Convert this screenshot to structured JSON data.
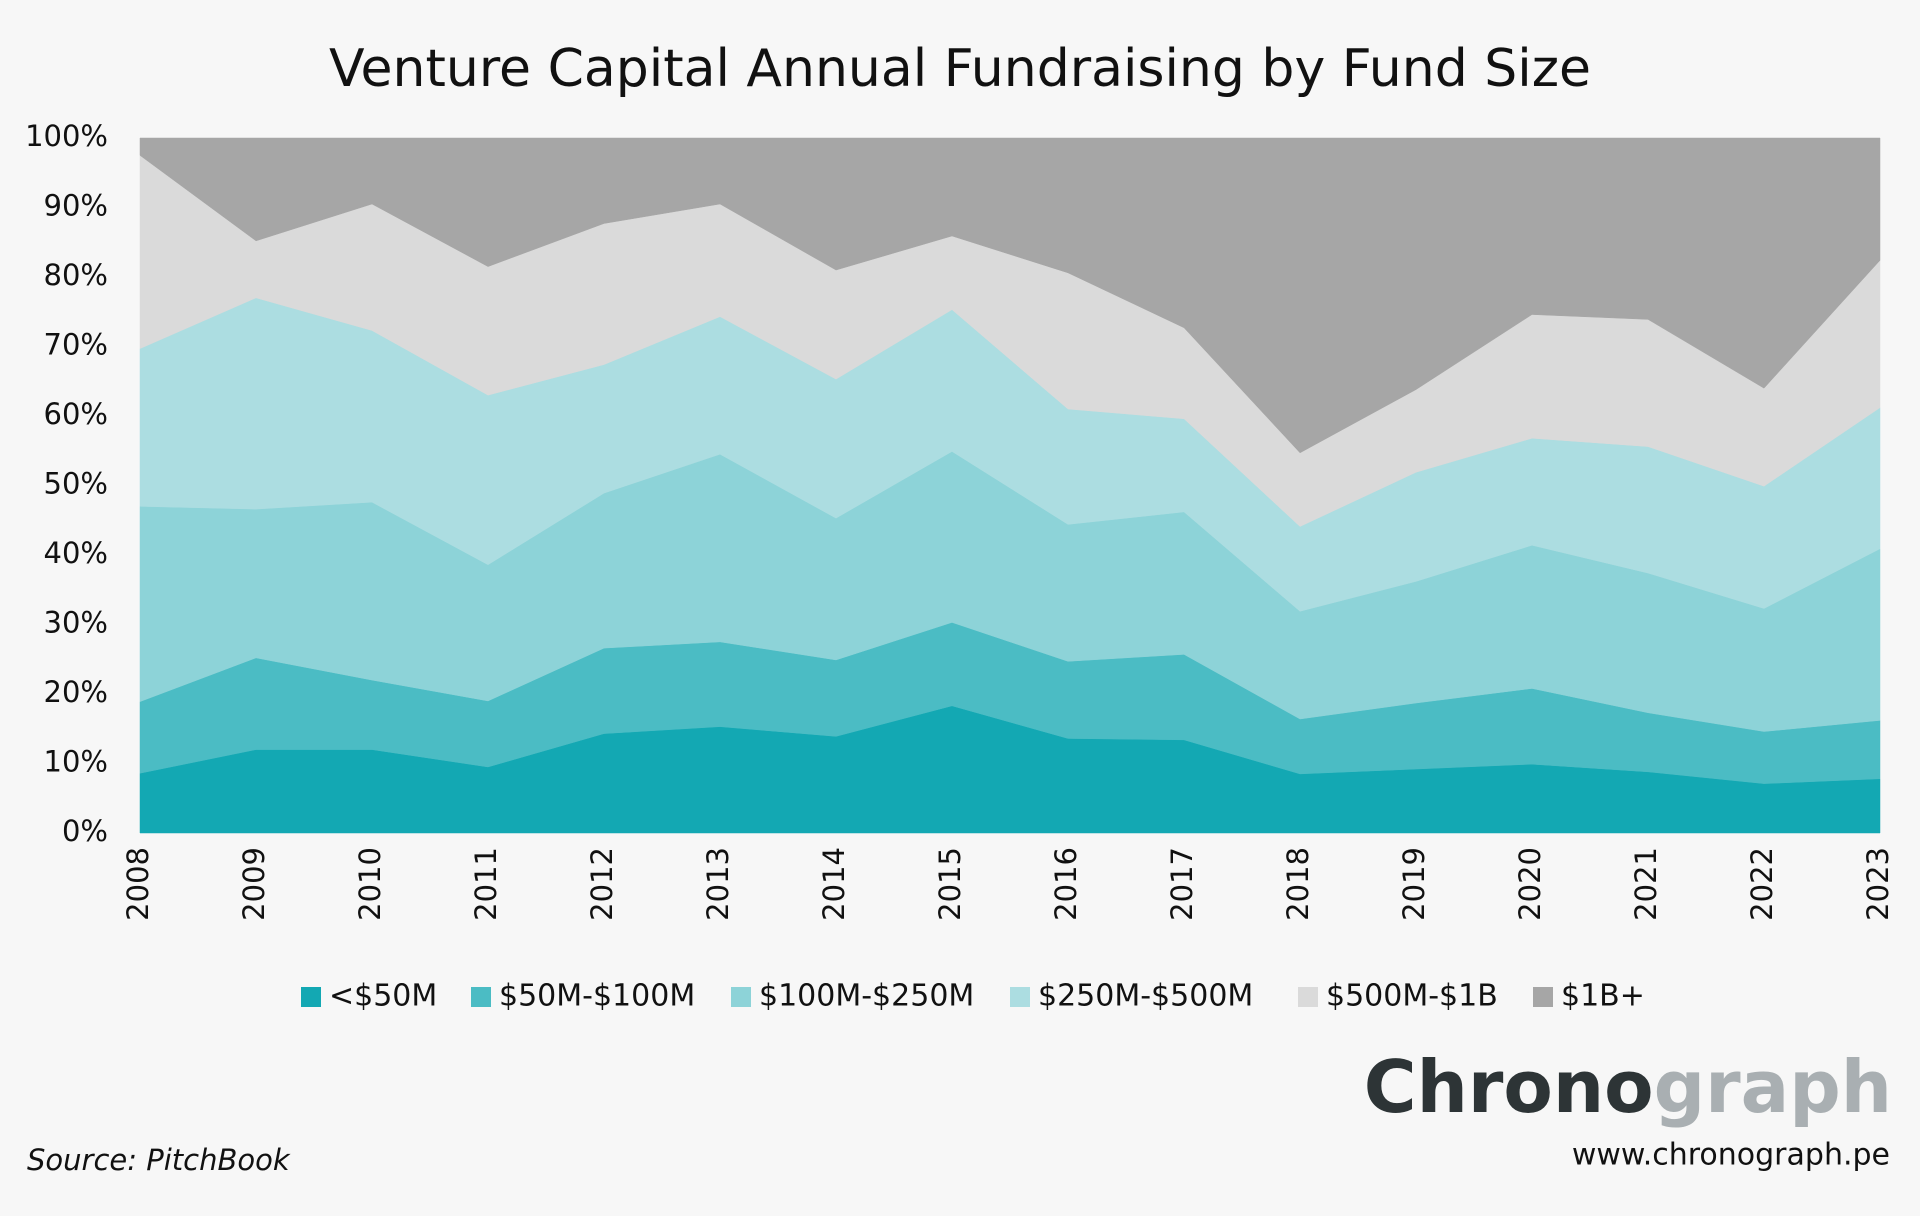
{
  "chart_data": {
    "type": "stacked_area_percent",
    "title": "Venture Capital Annual Fundraising by Fund Size",
    "x": [
      2008,
      2009,
      2010,
      2011,
      2012,
      2013,
      2014,
      2015,
      2016,
      2017,
      2018,
      2019,
      2020,
      2021,
      2022,
      2023
    ],
    "xlim": [
      2008,
      2023
    ],
    "ylim": [
      0,
      100
    ],
    "yticks": [
      {
        "value": 0,
        "label": "0%"
      },
      {
        "value": 10,
        "label": "10%"
      },
      {
        "value": 20,
        "label": "20%"
      },
      {
        "value": 30,
        "label": "30%"
      },
      {
        "value": 40,
        "label": "40%"
      },
      {
        "value": 50,
        "label": "50%"
      },
      {
        "value": 60,
        "label": "60%"
      },
      {
        "value": 70,
        "label": "70%"
      },
      {
        "value": 80,
        "label": "80%"
      },
      {
        "value": 90,
        "label": "90%"
      },
      {
        "value": 100,
        "label": "100%"
      }
    ],
    "grid": false,
    "legend": "bottom",
    "series": [
      {
        "name": "<$50M",
        "color": "#13a8b3",
        "values": [
          8.6,
          12,
          12,
          9.5,
          14.3,
          15.3,
          13.9,
          18.3,
          13.6,
          13.4,
          8.5,
          9.2,
          9.9,
          8.8,
          7.1,
          7.8
        ]
      },
      {
        "name": "$50M-$100M",
        "color": "#4bbcc4",
        "values": [
          10.3,
          13.2,
          10,
          9.5,
          12.3,
          12.2,
          11,
          12,
          11.1,
          12.3,
          7.9,
          9.5,
          10.9,
          8.5,
          7.5,
          8.4
        ]
      },
      {
        "name": "$100M-$250M",
        "color": "#8dd3d8",
        "values": [
          28.1,
          21.4,
          25.6,
          19.6,
          22.3,
          27,
          20.4,
          24.6,
          19.7,
          20.5,
          15.5,
          17.5,
          20.6,
          20.1,
          17.7,
          24.7
        ]
      },
      {
        "name": "$250M-$500M",
        "color": "#acdde1",
        "values": [
          22.7,
          30.4,
          24.7,
          24.4,
          18.5,
          19.8,
          20,
          20.4,
          16.6,
          13.4,
          12.2,
          15.7,
          15.4,
          18.2,
          17.6,
          20.3
        ]
      },
      {
        "name": "$500M-$1B",
        "color": "#dadada",
        "values": [
          27.8,
          8.2,
          18.2,
          18.5,
          20.3,
          16.2,
          15.7,
          10.6,
          19.6,
          13.1,
          10.6,
          11.9,
          17.8,
          18.3,
          14.1,
          21.2
        ]
      },
      {
        "name": "$1B+",
        "color": "#a6a6a6",
        "values": [
          2.5,
          14.8,
          9.5,
          18.5,
          12.3,
          9.5,
          19,
          14.1,
          19.4,
          27.3,
          45.3,
          36.2,
          25.4,
          26.1,
          36,
          17.6
        ]
      }
    ],
    "source": "Source: PitchBook",
    "brand": {
      "name_dark": "Chrono",
      "name_light": "graph",
      "url": "www.chronograph.pe"
    }
  }
}
